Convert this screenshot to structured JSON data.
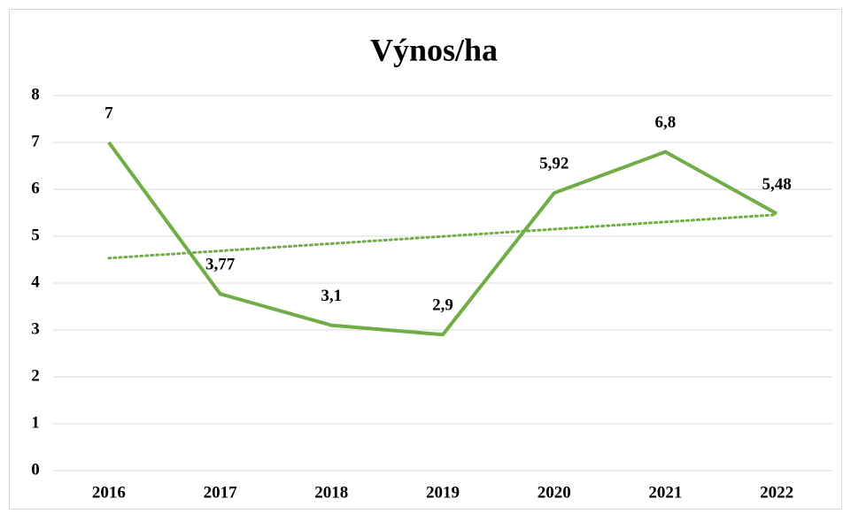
{
  "chart_data": {
    "type": "line",
    "title": "Výnos/ha",
    "categories": [
      "2016",
      "2017",
      "2018",
      "2019",
      "2020",
      "2021",
      "2022"
    ],
    "values": [
      7,
      3.77,
      3.1,
      2.9,
      5.92,
      6.8,
      5.48
    ],
    "value_labels": [
      "7",
      "3,77",
      "3,1",
      "2,9",
      "5,92",
      "6,8",
      "5,48"
    ],
    "color": "#70ad47",
    "trendline": {
      "type": "linear",
      "color": "#70ad47",
      "style": "dotted"
    },
    "ylim": [
      0,
      8
    ],
    "yticks": [
      0,
      1,
      2,
      3,
      4,
      5,
      6,
      7,
      8
    ],
    "grid": true
  }
}
